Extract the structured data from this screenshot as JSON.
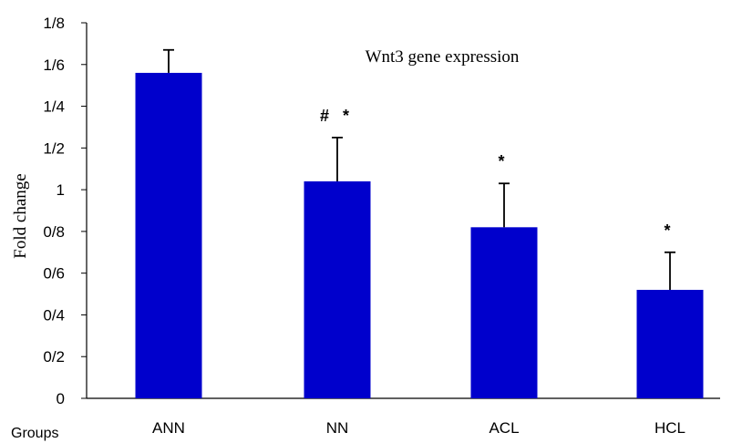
{
  "chart_data": {
    "type": "bar",
    "title": "Wnt3 gene expression",
    "xlabel": "Groups",
    "ylabel": "Fold change",
    "categories": [
      "ANN",
      "NN",
      "ACL",
      "HCL"
    ],
    "values": [
      1.56,
      1.04,
      0.82,
      0.52
    ],
    "error_plus": [
      0.11,
      0.21,
      0.21,
      0.18
    ],
    "annotations": [
      "",
      "#   *",
      "*",
      "*"
    ],
    "yticks": [
      {
        "value": 0,
        "label": "0"
      },
      {
        "value": 0.2,
        "label": "0/2"
      },
      {
        "value": 0.4,
        "label": "0/4"
      },
      {
        "value": 0.6,
        "label": "0/6"
      },
      {
        "value": 0.8,
        "label": "0/8"
      },
      {
        "value": 1.0,
        "label": "1"
      },
      {
        "value": 1.2,
        "label": "1/2"
      },
      {
        "value": 1.4,
        "label": "1/4"
      },
      {
        "value": 1.6,
        "label": "1/6"
      },
      {
        "value": 1.8,
        "label": "1/8"
      }
    ],
    "ylim": [
      0,
      1.8
    ],
    "grid": false,
    "bar_color": "#0000CC"
  }
}
